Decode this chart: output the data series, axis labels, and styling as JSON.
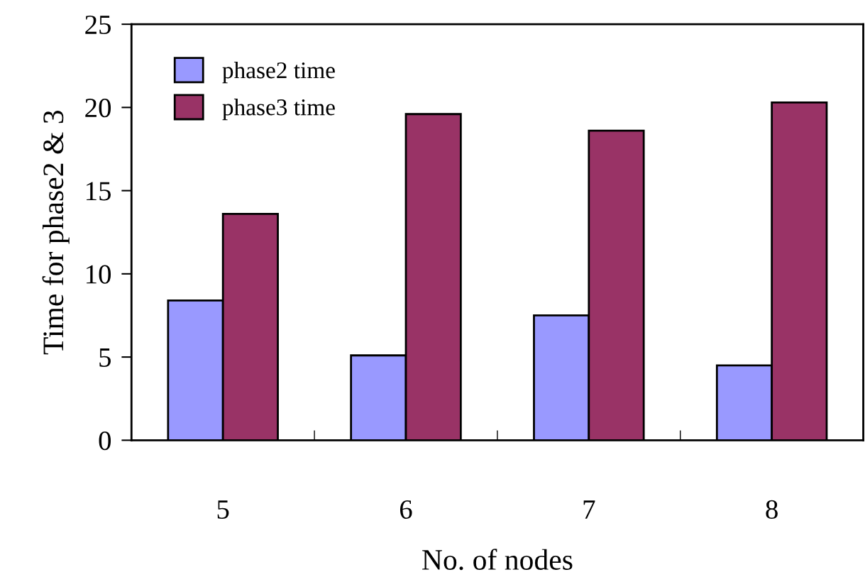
{
  "chart_data": {
    "type": "bar",
    "xlabel": "No. of nodes",
    "ylabel": "Time for phase2 & 3",
    "categories": [
      "5",
      "6",
      "7",
      "8"
    ],
    "series": [
      {
        "name": "phase2 time",
        "color": "#9999ff",
        "values": [
          8.4,
          5.1,
          7.5,
          4.5
        ]
      },
      {
        "name": "phase3 time",
        "color": "#993366",
        "values": [
          13.6,
          19.6,
          18.6,
          20.3
        ]
      }
    ],
    "ylim": [
      0,
      25
    ],
    "yticks": [
      0,
      5,
      10,
      15,
      20,
      25
    ],
    "grid": false,
    "legend": "top left"
  }
}
